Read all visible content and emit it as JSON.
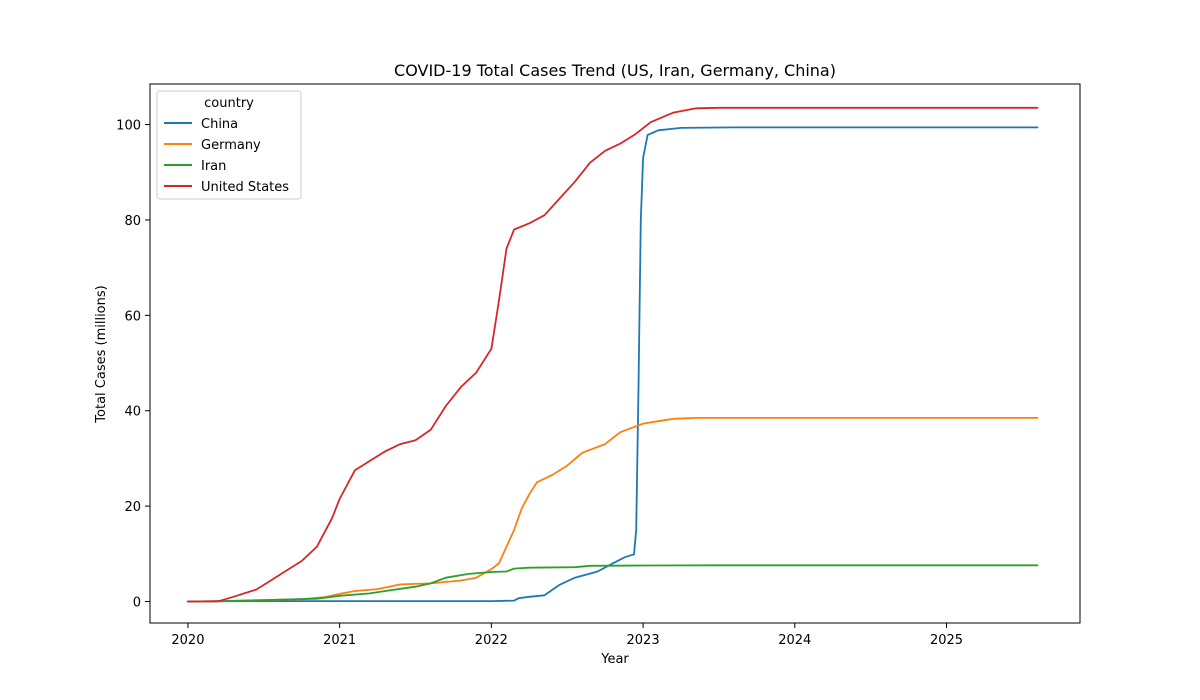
{
  "chart_data": {
    "type": "line",
    "title": "COVID-19 Total Cases Trend (US, Iran, Germany, China)",
    "xlabel": "Year",
    "ylabel": "Total Cases (millions)",
    "xlim": [
      2019.75,
      2025.88
    ],
    "ylim": [
      -4.5,
      108.5
    ],
    "x_ticks": [
      2020,
      2021,
      2022,
      2023,
      2024,
      2025
    ],
    "y_ticks": [
      0,
      20,
      40,
      60,
      80,
      100
    ],
    "grid": false,
    "legend": {
      "title": "country",
      "position": "top-left"
    },
    "series": [
      {
        "name": "China",
        "color": "#1f77b4",
        "points": [
          [
            2020.0,
            0
          ],
          [
            2020.5,
            0.1
          ],
          [
            2021.0,
            0.1
          ],
          [
            2021.5,
            0.1
          ],
          [
            2022.0,
            0.1
          ],
          [
            2022.15,
            0.2
          ],
          [
            2022.18,
            0.7
          ],
          [
            2022.25,
            1.0
          ],
          [
            2022.35,
            1.3
          ],
          [
            2022.45,
            3.5
          ],
          [
            2022.55,
            5.0
          ],
          [
            2022.7,
            6.3
          ],
          [
            2022.8,
            8.0
          ],
          [
            2022.88,
            9.3
          ],
          [
            2022.94,
            9.9
          ],
          [
            2022.955,
            15
          ],
          [
            2022.97,
            45
          ],
          [
            2022.985,
            80
          ],
          [
            2023.0,
            93
          ],
          [
            2023.03,
            97.8
          ],
          [
            2023.1,
            98.8
          ],
          [
            2023.25,
            99.3
          ],
          [
            2023.6,
            99.4
          ],
          [
            2024.5,
            99.4
          ],
          [
            2025.6,
            99.4
          ]
        ]
      },
      {
        "name": "Germany",
        "color": "#ff7f0e",
        "points": [
          [
            2020.0,
            0
          ],
          [
            2020.25,
            0.1
          ],
          [
            2020.75,
            0.5
          ],
          [
            2020.9,
            0.9
          ],
          [
            2021.0,
            1.6
          ],
          [
            2021.1,
            2.2
          ],
          [
            2021.25,
            2.6
          ],
          [
            2021.4,
            3.6
          ],
          [
            2021.6,
            3.8
          ],
          [
            2021.8,
            4.4
          ],
          [
            2021.9,
            5.0
          ],
          [
            2022.0,
            6.8
          ],
          [
            2022.05,
            8.0
          ],
          [
            2022.1,
            11.5
          ],
          [
            2022.15,
            15.0
          ],
          [
            2022.2,
            19.5
          ],
          [
            2022.25,
            22.5
          ],
          [
            2022.3,
            25.0
          ],
          [
            2022.4,
            26.5
          ],
          [
            2022.5,
            28.5
          ],
          [
            2022.6,
            31.2
          ],
          [
            2022.75,
            33.0
          ],
          [
            2022.85,
            35.5
          ],
          [
            2023.0,
            37.3
          ],
          [
            2023.1,
            37.8
          ],
          [
            2023.2,
            38.3
          ],
          [
            2023.35,
            38.5
          ],
          [
            2024.0,
            38.5
          ],
          [
            2025.6,
            38.5
          ]
        ]
      },
      {
        "name": "Iran",
        "color": "#2ca02c",
        "points": [
          [
            2020.0,
            0
          ],
          [
            2020.2,
            0.1
          ],
          [
            2020.5,
            0.3
          ],
          [
            2020.85,
            0.6
          ],
          [
            2021.0,
            1.2
          ],
          [
            2021.2,
            1.7
          ],
          [
            2021.3,
            2.2
          ],
          [
            2021.5,
            3.1
          ],
          [
            2021.6,
            3.8
          ],
          [
            2021.7,
            5.0
          ],
          [
            2021.85,
            5.8
          ],
          [
            2022.0,
            6.2
          ],
          [
            2022.1,
            6.3
          ],
          [
            2022.15,
            6.9
          ],
          [
            2022.25,
            7.1
          ],
          [
            2022.55,
            7.2
          ],
          [
            2022.65,
            7.5
          ],
          [
            2023.0,
            7.56
          ],
          [
            2023.5,
            7.6
          ],
          [
            2024.5,
            7.6
          ],
          [
            2025.6,
            7.6
          ]
        ]
      },
      {
        "name": "United States",
        "color": "#d62728",
        "points": [
          [
            2020.0,
            0
          ],
          [
            2020.2,
            0.05
          ],
          [
            2020.3,
            1.0
          ],
          [
            2020.45,
            2.5
          ],
          [
            2020.55,
            4.5
          ],
          [
            2020.65,
            6.5
          ],
          [
            2020.75,
            8.5
          ],
          [
            2020.85,
            11.5
          ],
          [
            2020.95,
            17.5
          ],
          [
            2021.0,
            21.5
          ],
          [
            2021.1,
            27.5
          ],
          [
            2021.2,
            29.5
          ],
          [
            2021.3,
            31.5
          ],
          [
            2021.4,
            33.0
          ],
          [
            2021.5,
            33.8
          ],
          [
            2021.6,
            36.0
          ],
          [
            2021.7,
            41.0
          ],
          [
            2021.8,
            45.0
          ],
          [
            2021.9,
            48.0
          ],
          [
            2022.0,
            53.0
          ],
          [
            2022.05,
            63.0
          ],
          [
            2022.1,
            74.0
          ],
          [
            2022.15,
            78.0
          ],
          [
            2022.25,
            79.3
          ],
          [
            2022.35,
            81.0
          ],
          [
            2022.45,
            84.5
          ],
          [
            2022.55,
            88.0
          ],
          [
            2022.65,
            92.0
          ],
          [
            2022.75,
            94.5
          ],
          [
            2022.85,
            96.0
          ],
          [
            2022.95,
            98.0
          ],
          [
            2023.05,
            100.5
          ],
          [
            2023.2,
            102.5
          ],
          [
            2023.35,
            103.4
          ],
          [
            2023.5,
            103.5
          ],
          [
            2024.5,
            103.5
          ],
          [
            2025.6,
            103.5
          ]
        ]
      }
    ]
  }
}
